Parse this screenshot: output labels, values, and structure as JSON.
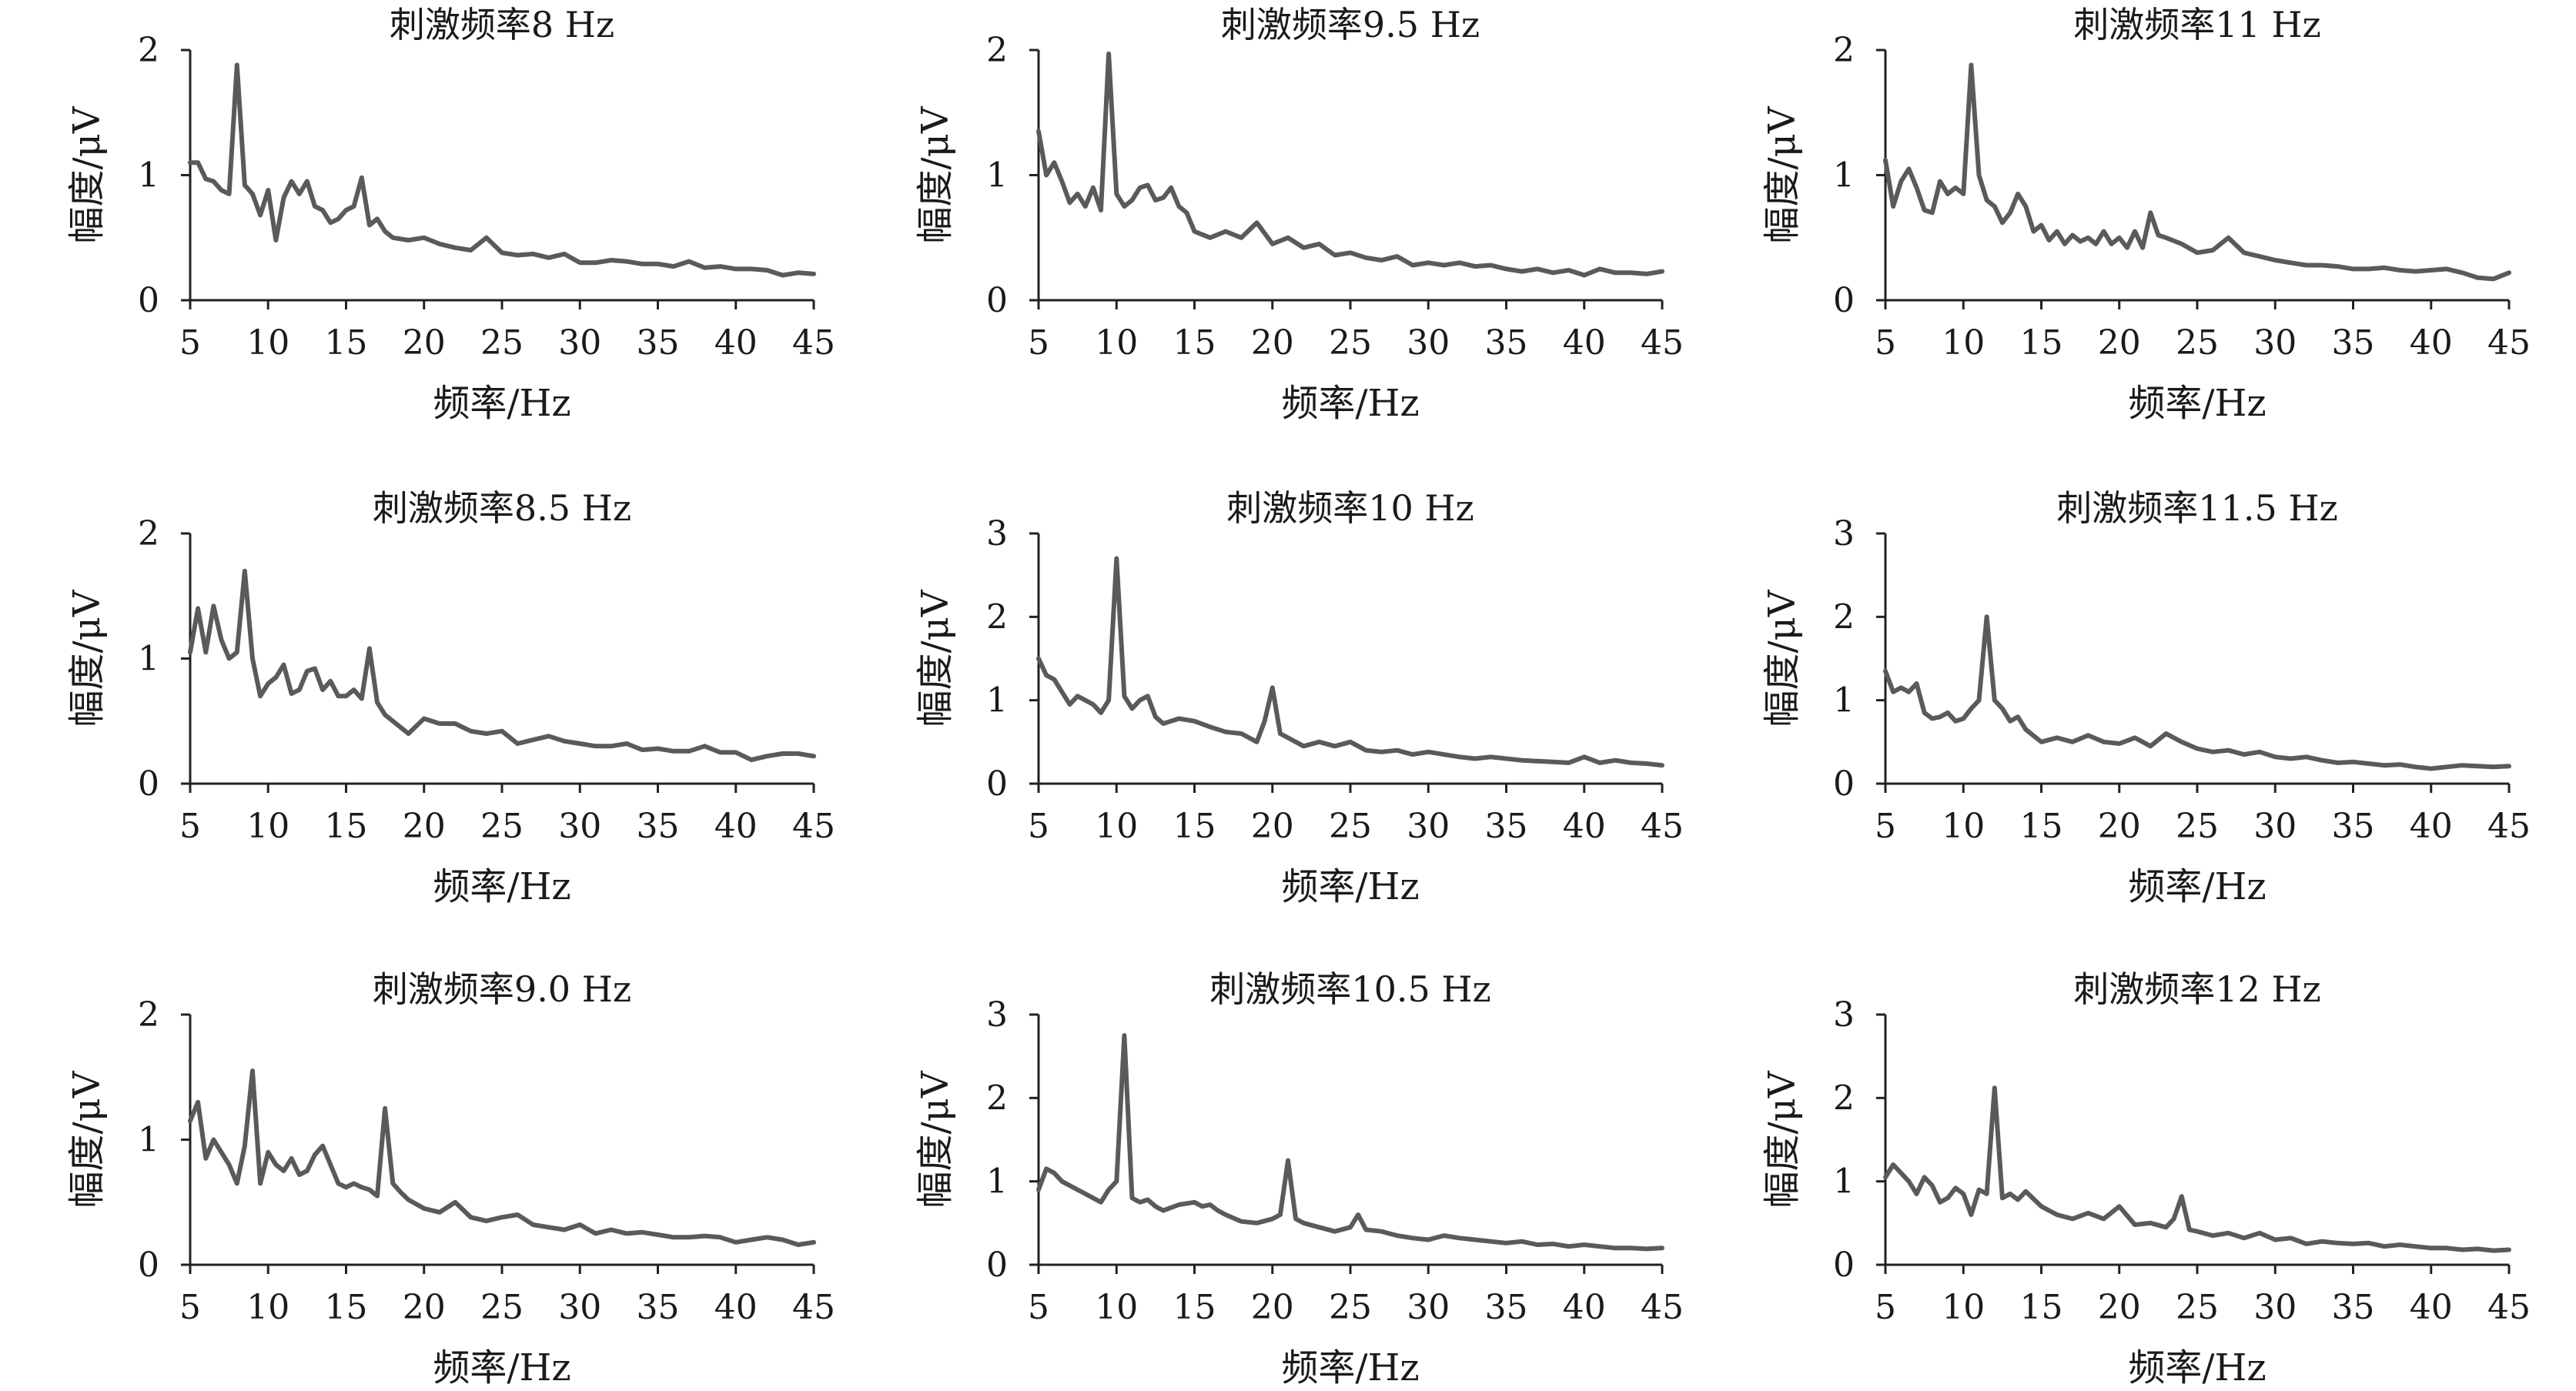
{
  "colors": {
    "line": "#5a5a5a",
    "axis": "#222222",
    "background": "#ffffff"
  },
  "chart_data": [
    {
      "type": "line",
      "title": "刺激频率8 Hz",
      "xlabel": "频率/Hz",
      "ylabel": "幅度/μV",
      "xlim": [
        5,
        45
      ],
      "ylim": [
        0,
        2
      ],
      "xticks": [
        "5",
        "10",
        "15",
        "20",
        "25",
        "30",
        "35",
        "40",
        "45"
      ],
      "yticks": [
        "0",
        "1",
        "2"
      ],
      "grid": false,
      "x": [
        5,
        5.5,
        6,
        6.5,
        7,
        7.5,
        8,
        8.5,
        9,
        9.5,
        10,
        10.5,
        11,
        11.5,
        12,
        12.5,
        13,
        13.5,
        14,
        14.5,
        15,
        15.5,
        16,
        16.5,
        17,
        17.5,
        18,
        19,
        20,
        21,
        22,
        23,
        24,
        25,
        26,
        27,
        28,
        29,
        30,
        31,
        32,
        33,
        34,
        35,
        36,
        37,
        38,
        39,
        40,
        41,
        42,
        43,
        44,
        45
      ],
      "y": [
        1.1,
        1.1,
        0.97,
        0.95,
        0.88,
        0.85,
        1.88,
        0.92,
        0.85,
        0.68,
        0.88,
        0.48,
        0.82,
        0.95,
        0.85,
        0.95,
        0.75,
        0.72,
        0.62,
        0.65,
        0.72,
        0.75,
        0.98,
        0.6,
        0.65,
        0.55,
        0.5,
        0.48,
        0.5,
        0.45,
        0.42,
        0.4,
        0.5,
        0.38,
        0.36,
        0.37,
        0.34,
        0.37,
        0.3,
        0.3,
        0.32,
        0.31,
        0.29,
        0.29,
        0.27,
        0.31,
        0.26,
        0.27,
        0.25,
        0.25,
        0.24,
        0.2,
        0.22,
        0.21
      ]
    },
    {
      "type": "line",
      "title": "刺激频率9.5 Hz",
      "xlabel": "频率/Hz",
      "ylabel": "幅度/μV",
      "xlim": [
        5,
        45
      ],
      "ylim": [
        0,
        2
      ],
      "xticks": [
        "5",
        "10",
        "15",
        "20",
        "25",
        "30",
        "35",
        "40",
        "45"
      ],
      "yticks": [
        "0",
        "1",
        "2"
      ],
      "grid": false,
      "x": [
        5,
        5.5,
        6,
        6.5,
        7,
        7.5,
        8,
        8.5,
        9,
        9.5,
        10,
        10.5,
        11,
        11.5,
        12,
        12.5,
        13,
        13.5,
        14,
        14.5,
        15,
        16,
        17,
        18,
        19,
        20,
        21,
        22,
        23,
        24,
        25,
        26,
        27,
        28,
        29,
        30,
        31,
        32,
        33,
        34,
        35,
        36,
        37,
        38,
        39,
        40,
        41,
        42,
        43,
        44,
        45
      ],
      "y": [
        1.35,
        1.0,
        1.1,
        0.95,
        0.78,
        0.85,
        0.75,
        0.9,
        0.72,
        1.97,
        0.85,
        0.75,
        0.8,
        0.9,
        0.92,
        0.8,
        0.82,
        0.9,
        0.75,
        0.7,
        0.55,
        0.5,
        0.55,
        0.5,
        0.62,
        0.45,
        0.5,
        0.42,
        0.45,
        0.36,
        0.38,
        0.34,
        0.32,
        0.35,
        0.28,
        0.3,
        0.28,
        0.3,
        0.27,
        0.28,
        0.25,
        0.23,
        0.25,
        0.22,
        0.24,
        0.2,
        0.25,
        0.22,
        0.22,
        0.21,
        0.23
      ]
    },
    {
      "type": "line",
      "title": "刺激频率11 Hz",
      "xlabel": "频率/Hz",
      "ylabel": "幅度/μV",
      "xlim": [
        5,
        45
      ],
      "ylim": [
        0,
        2
      ],
      "xticks": [
        "5",
        "10",
        "15",
        "20",
        "25",
        "30",
        "35",
        "40",
        "45"
      ],
      "yticks": [
        "0",
        "1",
        "2"
      ],
      "grid": false,
      "x": [
        5,
        5.5,
        6,
        6.5,
        7,
        7.5,
        8,
        8.5,
        9,
        9.5,
        10,
        10.5,
        11,
        11.5,
        12,
        12.5,
        13,
        13.5,
        14,
        14.5,
        15,
        15.5,
        16,
        16.5,
        17,
        17.5,
        18,
        18.5,
        19,
        19.5,
        20,
        20.5,
        21,
        21.5,
        22,
        22.5,
        23,
        24,
        25,
        26,
        27,
        28,
        29,
        30,
        31,
        32,
        33,
        34,
        35,
        36,
        37,
        38,
        39,
        40,
        41,
        42,
        43,
        44,
        45
      ],
      "y": [
        1.12,
        0.75,
        0.95,
        1.05,
        0.9,
        0.72,
        0.7,
        0.95,
        0.85,
        0.9,
        0.85,
        1.88,
        1.0,
        0.8,
        0.75,
        0.62,
        0.7,
        0.85,
        0.75,
        0.55,
        0.6,
        0.48,
        0.55,
        0.45,
        0.52,
        0.47,
        0.5,
        0.45,
        0.55,
        0.45,
        0.5,
        0.42,
        0.55,
        0.42,
        0.7,
        0.52,
        0.5,
        0.45,
        0.38,
        0.4,
        0.5,
        0.38,
        0.35,
        0.32,
        0.3,
        0.28,
        0.28,
        0.27,
        0.25,
        0.25,
        0.26,
        0.24,
        0.23,
        0.24,
        0.25,
        0.22,
        0.18,
        0.17,
        0.22
      ]
    },
    {
      "type": "line",
      "title": "刺激频率8.5 Hz",
      "xlabel": "频率/Hz",
      "ylabel": "幅度/μV",
      "xlim": [
        5,
        45
      ],
      "ylim": [
        0,
        2
      ],
      "xticks": [
        "5",
        "10",
        "15",
        "20",
        "25",
        "30",
        "35",
        "40",
        "45"
      ],
      "yticks": [
        "0",
        "1",
        "2"
      ],
      "grid": false,
      "x": [
        5,
        5.5,
        6,
        6.5,
        7,
        7.5,
        8,
        8.5,
        9,
        9.5,
        10,
        10.5,
        11,
        11.5,
        12,
        12.5,
        13,
        13.5,
        14,
        14.5,
        15,
        15.5,
        16,
        16.5,
        17,
        17.5,
        18,
        19,
        20,
        21,
        22,
        23,
        24,
        25,
        26,
        27,
        28,
        29,
        30,
        31,
        32,
        33,
        34,
        35,
        36,
        37,
        38,
        39,
        40,
        41,
        42,
        43,
        44,
        45
      ],
      "y": [
        1.05,
        1.4,
        1.05,
        1.42,
        1.15,
        1.0,
        1.05,
        1.7,
        1.0,
        0.7,
        0.8,
        0.85,
        0.95,
        0.72,
        0.75,
        0.9,
        0.92,
        0.75,
        0.82,
        0.7,
        0.7,
        0.75,
        0.68,
        1.08,
        0.65,
        0.55,
        0.5,
        0.4,
        0.52,
        0.48,
        0.48,
        0.42,
        0.4,
        0.42,
        0.32,
        0.35,
        0.38,
        0.34,
        0.32,
        0.3,
        0.3,
        0.32,
        0.27,
        0.28,
        0.26,
        0.26,
        0.3,
        0.25,
        0.25,
        0.19,
        0.22,
        0.24,
        0.24,
        0.22
      ]
    },
    {
      "type": "line",
      "title": "刺激频率10 Hz",
      "xlabel": "频率/Hz",
      "ylabel": "幅度/μV",
      "xlim": [
        5,
        45
      ],
      "ylim": [
        0,
        3
      ],
      "xticks": [
        "5",
        "10",
        "15",
        "20",
        "25",
        "30",
        "35",
        "40",
        "45"
      ],
      "yticks": [
        "0",
        "1",
        "2",
        "3"
      ],
      "grid": false,
      "x": [
        5,
        5.5,
        6,
        6.5,
        7,
        7.5,
        8,
        8.5,
        9,
        9.5,
        10,
        10.5,
        11,
        11.5,
        12,
        12.5,
        13,
        14,
        15,
        16,
        17,
        18,
        19,
        19.5,
        20,
        20.5,
        21,
        22,
        23,
        24,
        25,
        26,
        27,
        28,
        29,
        30,
        31,
        32,
        33,
        34,
        35,
        36,
        37,
        38,
        39,
        40,
        41,
        42,
        43,
        44,
        45
      ],
      "y": [
        1.5,
        1.3,
        1.25,
        1.1,
        0.95,
        1.05,
        1.0,
        0.95,
        0.85,
        1.0,
        2.7,
        1.05,
        0.9,
        1.0,
        1.05,
        0.8,
        0.72,
        0.78,
        0.75,
        0.68,
        0.62,
        0.6,
        0.5,
        0.75,
        1.15,
        0.6,
        0.55,
        0.45,
        0.5,
        0.45,
        0.5,
        0.4,
        0.38,
        0.4,
        0.35,
        0.38,
        0.35,
        0.32,
        0.3,
        0.32,
        0.3,
        0.28,
        0.27,
        0.26,
        0.25,
        0.32,
        0.25,
        0.28,
        0.25,
        0.24,
        0.22
      ]
    },
    {
      "type": "line",
      "title": "刺激频率11.5 Hz",
      "xlabel": "频率/Hz",
      "ylabel": "幅度/μV",
      "xlim": [
        5,
        45
      ],
      "ylim": [
        0,
        3
      ],
      "xticks": [
        "5",
        "10",
        "15",
        "20",
        "25",
        "30",
        "35",
        "40",
        "45"
      ],
      "yticks": [
        "0",
        "1",
        "2",
        "3"
      ],
      "grid": false,
      "x": [
        5,
        5.5,
        6,
        6.5,
        7,
        7.5,
        8,
        8.5,
        9,
        9.5,
        10,
        10.5,
        11,
        11.5,
        12,
        12.5,
        13,
        13.5,
        14,
        15,
        16,
        17,
        18,
        19,
        20,
        21,
        22,
        23,
        24,
        25,
        26,
        27,
        28,
        29,
        30,
        31,
        32,
        33,
        34,
        35,
        36,
        37,
        38,
        39,
        40,
        41,
        42,
        43,
        44,
        45
      ],
      "y": [
        1.35,
        1.1,
        1.15,
        1.1,
        1.2,
        0.85,
        0.78,
        0.8,
        0.85,
        0.75,
        0.78,
        0.9,
        1.0,
        2.0,
        1.0,
        0.9,
        0.75,
        0.8,
        0.65,
        0.5,
        0.55,
        0.5,
        0.58,
        0.5,
        0.48,
        0.55,
        0.45,
        0.6,
        0.5,
        0.42,
        0.38,
        0.4,
        0.35,
        0.38,
        0.32,
        0.3,
        0.32,
        0.28,
        0.25,
        0.26,
        0.24,
        0.22,
        0.23,
        0.2,
        0.18,
        0.2,
        0.22,
        0.21,
        0.2,
        0.21
      ]
    },
    {
      "type": "line",
      "title": "刺激频率9.0 Hz",
      "xlabel": "频率/Hz",
      "ylabel": "幅度/μV",
      "xlim": [
        5,
        45
      ],
      "ylim": [
        0,
        2
      ],
      "xticks": [
        "5",
        "10",
        "15",
        "20",
        "25",
        "30",
        "35",
        "40",
        "45"
      ],
      "yticks": [
        "0",
        "1",
        "2"
      ],
      "grid": false,
      "x": [
        5,
        5.5,
        6,
        6.5,
        7,
        7.5,
        8,
        8.5,
        9,
        9.5,
        10,
        10.5,
        11,
        11.5,
        12,
        12.5,
        13,
        13.5,
        14,
        14.5,
        15,
        15.5,
        16,
        16.5,
        17,
        17.5,
        18,
        18.5,
        19,
        20,
        21,
        22,
        23,
        24,
        25,
        26,
        27,
        28,
        29,
        30,
        31,
        32,
        33,
        34,
        35,
        36,
        37,
        38,
        39,
        40,
        41,
        42,
        43,
        44,
        45
      ],
      "y": [
        1.15,
        1.3,
        0.85,
        1.0,
        0.9,
        0.8,
        0.65,
        0.95,
        1.55,
        0.65,
        0.9,
        0.8,
        0.75,
        0.85,
        0.72,
        0.75,
        0.88,
        0.95,
        0.8,
        0.65,
        0.62,
        0.65,
        0.62,
        0.6,
        0.55,
        1.25,
        0.65,
        0.58,
        0.52,
        0.45,
        0.42,
        0.5,
        0.38,
        0.35,
        0.38,
        0.4,
        0.32,
        0.3,
        0.28,
        0.32,
        0.25,
        0.28,
        0.25,
        0.26,
        0.24,
        0.22,
        0.22,
        0.23,
        0.22,
        0.18,
        0.2,
        0.22,
        0.2,
        0.16,
        0.18
      ]
    },
    {
      "type": "line",
      "title": "刺激频率10.5 Hz",
      "xlabel": "频率/Hz",
      "ylabel": "幅度/μV",
      "xlim": [
        5,
        45
      ],
      "ylim": [
        0,
        3
      ],
      "xticks": [
        "5",
        "10",
        "15",
        "20",
        "25",
        "30",
        "35",
        "40",
        "45"
      ],
      "yticks": [
        "0",
        "1",
        "2",
        "3"
      ],
      "grid": false,
      "x": [
        5,
        5.5,
        6,
        6.5,
        7,
        7.5,
        8,
        8.5,
        9,
        9.5,
        10,
        10.5,
        11,
        11.5,
        12,
        12.5,
        13,
        14,
        15,
        15.5,
        16,
        16.5,
        17,
        18,
        19,
        20,
        20.5,
        21,
        21.5,
        22,
        23,
        24,
        25,
        25.5,
        26,
        27,
        28,
        29,
        30,
        31,
        32,
        33,
        34,
        35,
        36,
        37,
        38,
        39,
        40,
        41,
        42,
        43,
        44,
        45
      ],
      "y": [
        0.9,
        1.15,
        1.1,
        1.0,
        0.95,
        0.9,
        0.85,
        0.8,
        0.75,
        0.9,
        1.0,
        2.75,
        0.8,
        0.75,
        0.78,
        0.7,
        0.65,
        0.72,
        0.75,
        0.7,
        0.72,
        0.65,
        0.6,
        0.52,
        0.5,
        0.55,
        0.6,
        1.25,
        0.55,
        0.5,
        0.45,
        0.4,
        0.45,
        0.6,
        0.42,
        0.4,
        0.35,
        0.32,
        0.3,
        0.35,
        0.32,
        0.3,
        0.28,
        0.26,
        0.28,
        0.24,
        0.25,
        0.22,
        0.24,
        0.22,
        0.2,
        0.2,
        0.19,
        0.2
      ]
    },
    {
      "type": "line",
      "title": "刺激频率12 Hz",
      "xlabel": "频率/Hz",
      "ylabel": "幅度/μV",
      "xlim": [
        5,
        45
      ],
      "ylim": [
        0,
        3
      ],
      "xticks": [
        "5",
        "10",
        "15",
        "20",
        "25",
        "30",
        "35",
        "40",
        "45"
      ],
      "yticks": [
        "0",
        "1",
        "2",
        "3"
      ],
      "grid": false,
      "x": [
        5,
        5.5,
        6,
        6.5,
        7,
        7.5,
        8,
        8.5,
        9,
        9.5,
        10,
        10.5,
        11,
        11.5,
        12,
        12.5,
        13,
        13.5,
        14,
        15,
        16,
        17,
        18,
        19,
        20,
        21,
        22,
        23,
        23.5,
        24,
        24.5,
        25,
        26,
        27,
        28,
        29,
        30,
        31,
        32,
        33,
        34,
        35,
        36,
        37,
        38,
        39,
        40,
        41,
        42,
        43,
        44,
        45
      ],
      "y": [
        1.05,
        1.2,
        1.1,
        1.0,
        0.85,
        1.05,
        0.95,
        0.75,
        0.8,
        0.92,
        0.85,
        0.6,
        0.9,
        0.85,
        2.12,
        0.8,
        0.85,
        0.78,
        0.88,
        0.7,
        0.6,
        0.55,
        0.62,
        0.55,
        0.7,
        0.48,
        0.5,
        0.45,
        0.55,
        0.82,
        0.42,
        0.4,
        0.35,
        0.38,
        0.32,
        0.38,
        0.3,
        0.32,
        0.25,
        0.28,
        0.26,
        0.25,
        0.26,
        0.22,
        0.24,
        0.22,
        0.2,
        0.2,
        0.18,
        0.19,
        0.17,
        0.18
      ]
    }
  ]
}
